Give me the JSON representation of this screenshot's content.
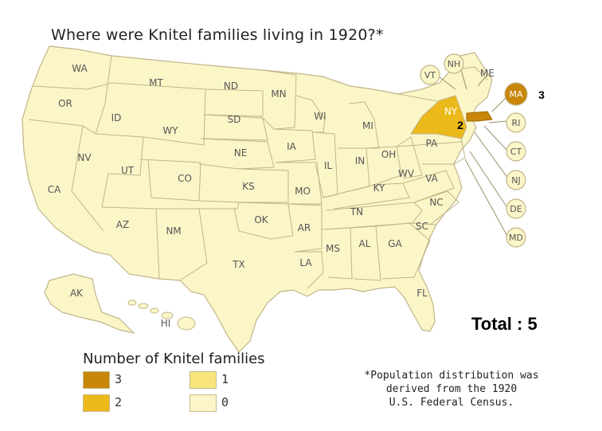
{
  "title": "Where were Knitel families living in 1920?*",
  "total": "Total : 5",
  "colors": {
    "level3": "#c8860a",
    "level2": "#ecb91a",
    "level1": "#f7e57c",
    "level0": "#fbf6c8",
    "border": "#c2b488",
    "background": "#ffffff"
  },
  "legend": {
    "title": "Number of Knitel families",
    "items": [
      {
        "label": "3",
        "color": "#c8860a"
      },
      {
        "label": "2",
        "color": "#ecb91a"
      },
      {
        "label": "1",
        "color": "#f7e57c"
      },
      {
        "label": "0",
        "color": "#fbf6c8"
      }
    ]
  },
  "note": {
    "line1": "*Population distribution was",
    "line2": "derived from the 1920",
    "line3": "U.S. Federal Census."
  },
  "states": {
    "WA": "WA",
    "OR": "OR",
    "CA": "CA",
    "ID": "ID",
    "NV": "NV",
    "MT": "MT",
    "WY": "WY",
    "UT": "UT",
    "AZ": "AZ",
    "CO": "CO",
    "NM": "NM",
    "ND": "ND",
    "SD": "SD",
    "NE": "NE",
    "KS": "KS",
    "OK": "OK",
    "TX": "TX",
    "MN": "MN",
    "IA": "IA",
    "MO": "MO",
    "AR": "AR",
    "LA": "LA",
    "WI": "WI",
    "IL": "IL",
    "MI": "MI",
    "IN": "IN",
    "OH": "OH",
    "KY": "KY",
    "TN": "TN",
    "MS": "MS",
    "AL": "AL",
    "GA": "GA",
    "FL": "FL",
    "SC": "SC",
    "NC": "NC",
    "VA": "VA",
    "WV": "WV",
    "PA": "PA",
    "NY": "NY",
    "ME": "ME",
    "AK": "AK",
    "HI": "HI"
  },
  "callouts": {
    "VT": "VT",
    "NH": "NH",
    "MA": "MA",
    "RI": "RI",
    "CT": "CT",
    "NJ": "NJ",
    "DE": "DE",
    "MD": "MD"
  },
  "counts": {
    "MA": "3",
    "NY": "2"
  }
}
